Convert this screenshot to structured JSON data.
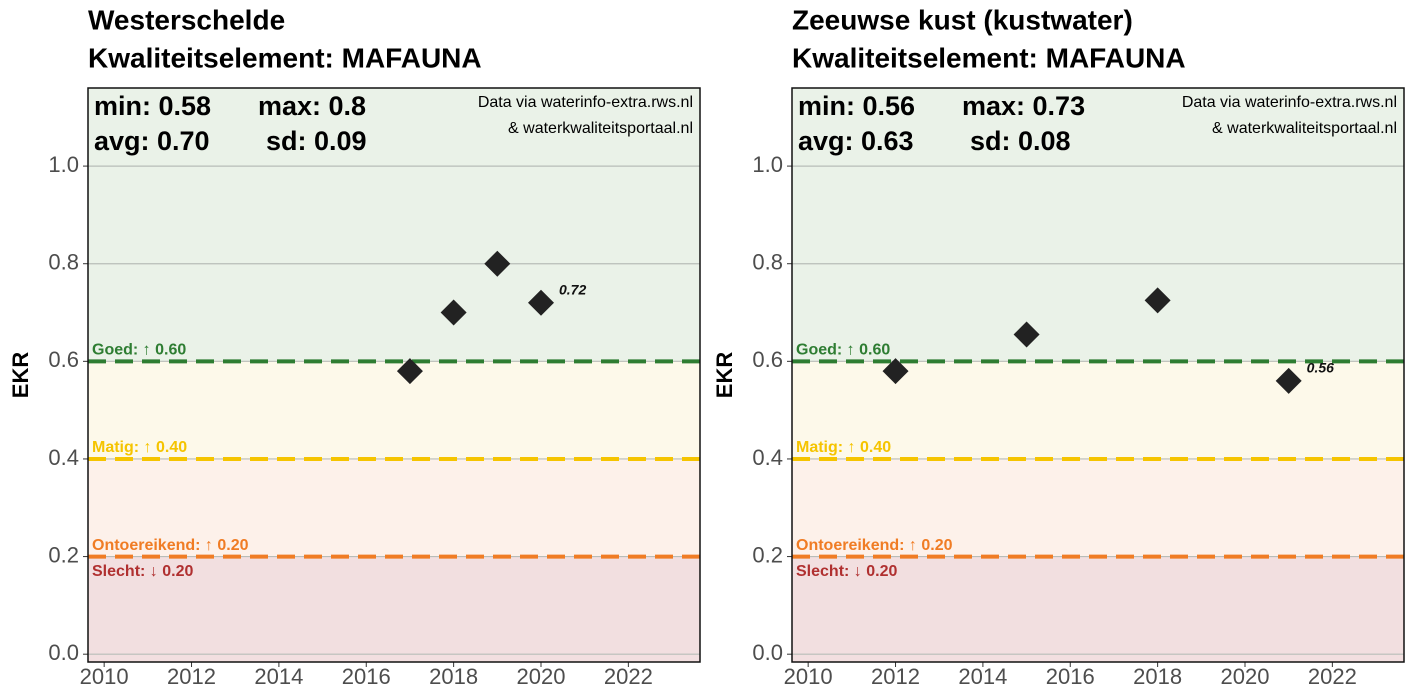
{
  "chart_data": [
    {
      "type": "scatter",
      "title": "Westerschelde",
      "subtitle": "Kwaliteitselement: MAFAUNA",
      "stats": [
        "min: 0.58",
        "max: 0.8",
        "avg: 0.70",
        "sd: 0.09"
      ],
      "source": [
        "Data via waterinfo-extra.rws.nl",
        "& waterkwaliteitsportaal.nl"
      ],
      "y_label": "EKR",
      "x": [
        2017,
        2018,
        2019,
        2020
      ],
      "values": [
        0.58,
        0.7,
        0.8,
        0.72
      ],
      "color": "#222222",
      "label_index": 3,
      "xlim": [
        2009.63,
        2023.64
      ],
      "xticks": [
        2010,
        2012,
        2014,
        2016,
        2018,
        2020,
        2022
      ],
      "ylim": [
        -0.016,
        1.16
      ],
      "yticks": [
        {
          "value": 0,
          "label": "0.0"
        },
        0.2,
        0.4,
        0.6,
        0.8,
        {
          "value": 1,
          "label": "1.0"
        }
      ],
      "grid": true,
      "bands": [
        {
          "range": [
            0.6,
            1.16
          ],
          "color": "#eaf2e8"
        },
        {
          "range": [
            0.4,
            0.6
          ],
          "color": "#fdf9ea"
        },
        {
          "range": [
            0.2,
            0.4
          ],
          "color": "#fdf1ea"
        },
        {
          "range": [
            -0.016,
            0.2
          ],
          "color": "#f2dfe0"
        }
      ],
      "thresholds": [
        {
          "value": 0.6,
          "label": "Goed: ↑ 0.60",
          "color": "#2e7d32",
          "line": true,
          "side": "above"
        },
        {
          "value": 0.4,
          "label": "Matig: ↑ 0.40",
          "color": "#f5c400",
          "line": true,
          "side": "above"
        },
        {
          "value": 0.2,
          "label": "Ontoereikend: ↑ 0.20",
          "color": "#f07c24",
          "line": true,
          "side": "above"
        },
        {
          "value": 0.2,
          "label": "Slecht: ↓ 0.20",
          "color": "#b03030",
          "line": false,
          "side": "below"
        }
      ]
    },
    {
      "type": "scatter",
      "title": "Zeeuwse kust (kustwater)",
      "subtitle": "Kwaliteitselement: MAFAUNA",
      "stats": [
        "min: 0.56",
        "max: 0.73",
        "avg: 0.63",
        "sd: 0.08"
      ],
      "source": [
        "Data via waterinfo-extra.rws.nl",
        "& waterkwaliteitsportaal.nl"
      ],
      "y_label": "EKR",
      "x": [
        2012,
        2015,
        2018,
        2021
      ],
      "values": [
        0.58,
        0.655,
        0.725,
        0.56
      ],
      "color": "#222222",
      "label_index": 3,
      "xlim": [
        2009.63,
        2023.64
      ],
      "xticks": [
        2010,
        2012,
        2014,
        2016,
        2018,
        2020,
        2022
      ],
      "ylim": [
        -0.016,
        1.16
      ],
      "yticks": [
        {
          "value": 0,
          "label": "0.0"
        },
        0.2,
        0.4,
        0.6,
        0.8,
        {
          "value": 1,
          "label": "1.0"
        }
      ],
      "grid": true,
      "bands": [
        {
          "range": [
            0.6,
            1.16
          ],
          "color": "#eaf2e8"
        },
        {
          "range": [
            0.4,
            0.6
          ],
          "color": "#fdf9ea"
        },
        {
          "range": [
            0.2,
            0.4
          ],
          "color": "#fdf1ea"
        },
        {
          "range": [
            -0.016,
            0.2
          ],
          "color": "#f2dfe0"
        }
      ],
      "thresholds": [
        {
          "value": 0.6,
          "label": "Goed: ↑ 0.60",
          "color": "#2e7d32",
          "line": true,
          "side": "above"
        },
        {
          "value": 0.4,
          "label": "Matig: ↑ 0.40",
          "color": "#f5c400",
          "line": true,
          "side": "above"
        },
        {
          "value": 0.2,
          "label": "Ontoereikend: ↑ 0.20",
          "color": "#f07c24",
          "line": true,
          "side": "above"
        },
        {
          "value": 0.2,
          "label": "Slecht: ↓ 0.20",
          "color": "#b03030",
          "line": false,
          "side": "below"
        }
      ]
    }
  ]
}
